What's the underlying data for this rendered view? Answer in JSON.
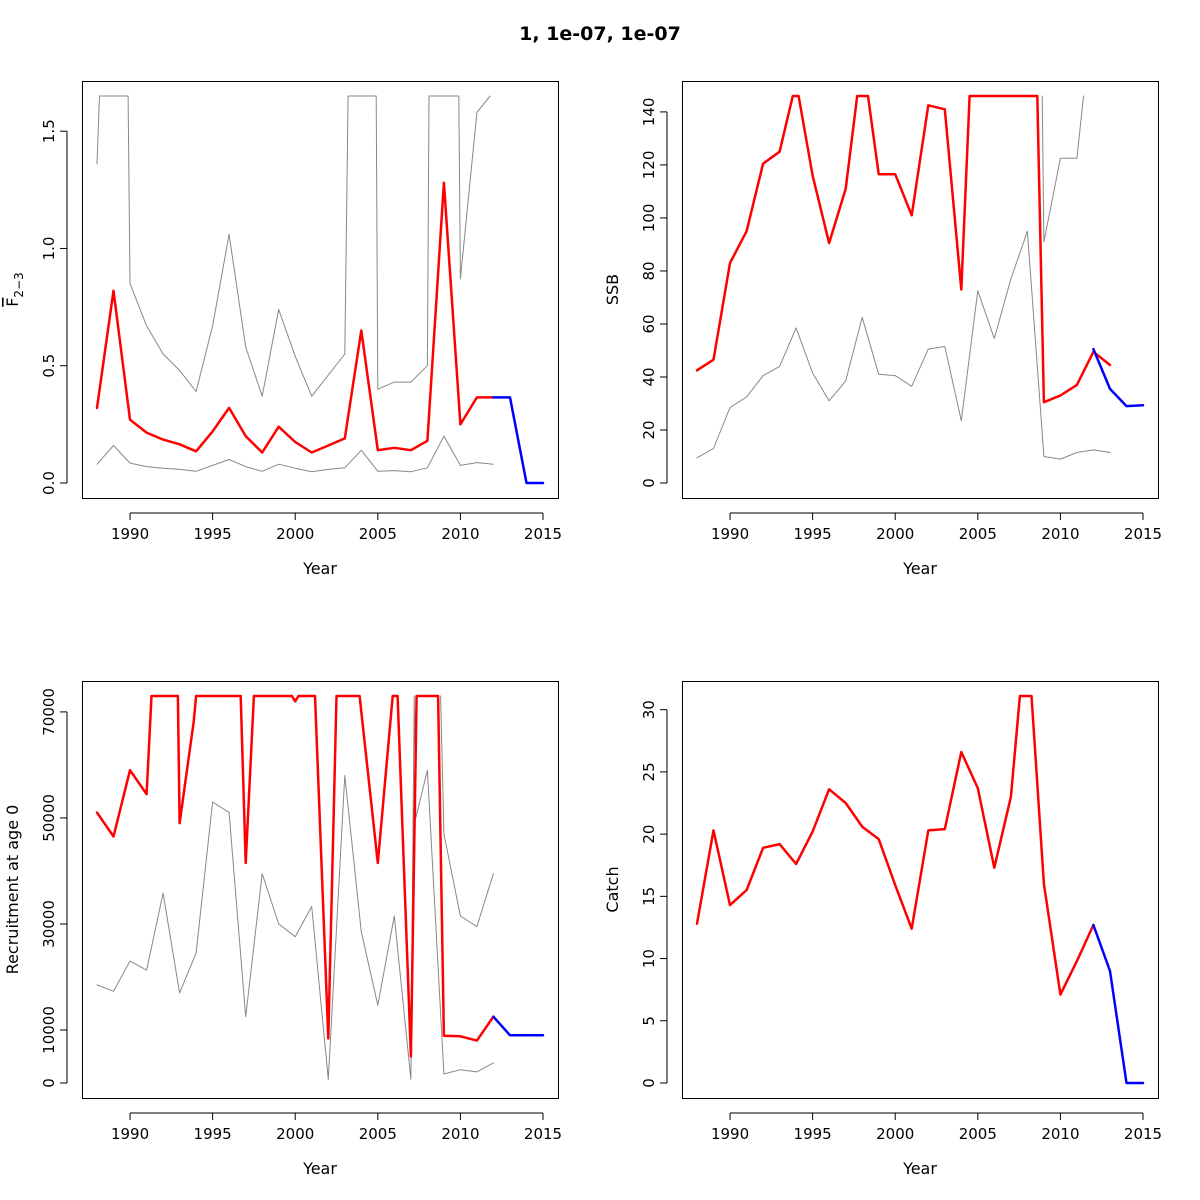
{
  "figure_title": "1, 1e-07, 1e-07",
  "chart_data": [
    {
      "type": "line",
      "xlabel": "Year",
      "ylabel_main": "F",
      "ylabel_sub": "2−3",
      "ylabel_overline": true,
      "xlim": [
        1988,
        2015
      ],
      "ylim": [
        0,
        1.65
      ],
      "xticks": [
        1990,
        1995,
        2000,
        2005,
        2010,
        2015
      ],
      "xtick_labels": [
        "1990",
        "1995",
        "2000",
        "2005",
        "2010",
        "2015"
      ],
      "yticks": [
        0,
        0.5,
        1.0,
        1.5
      ],
      "ytick_labels": [
        "0.0",
        "0.5",
        "1.0",
        "1.5"
      ],
      "series": [
        {
          "name": "lower",
          "color": "#888888",
          "width": 1,
          "x": [
            1988,
            1989,
            1990,
            1991,
            1992,
            1993,
            1994,
            1995,
            1996,
            1997,
            1998,
            1999,
            2000,
            2001,
            2002,
            2003,
            2004,
            2005,
            2006,
            2007,
            2008,
            2009,
            2010,
            2011,
            2012
          ],
          "values": [
            0.08,
            0.16,
            0.085,
            0.07,
            0.063,
            0.058,
            0.05,
            0.075,
            0.1,
            0.07,
            0.05,
            0.08,
            0.063,
            0.048,
            0.058,
            0.065,
            0.14,
            0.05,
            0.053,
            0.048,
            0.065,
            0.2,
            0.075,
            0.087,
            0.08
          ]
        },
        {
          "name": "upper",
          "color": "#888888",
          "width": 1,
          "x": [
            1988,
            1988.15,
            1989.88,
            1990,
            1991,
            1992,
            1993,
            1994,
            1995,
            1996,
            1997,
            1998,
            1999,
            2000,
            2001,
            2002,
            2003,
            2003.2,
            2004.9,
            2005,
            2006,
            2007,
            2008,
            2008.1,
            2009.9,
            2010,
            2011,
            2011.8
          ],
          "values": [
            1.36,
            1.65,
            1.65,
            0.85,
            0.67,
            0.55,
            0.48,
            0.39,
            0.67,
            1.06,
            0.58,
            0.37,
            0.74,
            0.54,
            0.37,
            0.46,
            0.55,
            1.65,
            1.65,
            0.4,
            0.43,
            0.43,
            0.5,
            1.65,
            1.65,
            0.87,
            1.58,
            1.65
          ]
        },
        {
          "name": "estimate",
          "color": "#ff0000",
          "width": 2.5,
          "x": [
            1988,
            1989,
            1990,
            1991,
            1992,
            1993,
            1994,
            1995,
            1996,
            1997,
            1998,
            1999,
            2000,
            2001,
            2002,
            2003,
            2004,
            2005,
            2006,
            2007,
            2008,
            2009,
            2010,
            2011,
            2012
          ],
          "values": [
            0.32,
            0.82,
            0.27,
            0.215,
            0.185,
            0.165,
            0.135,
            0.22,
            0.32,
            0.2,
            0.13,
            0.24,
            0.175,
            0.13,
            0.16,
            0.19,
            0.65,
            0.14,
            0.15,
            0.14,
            0.18,
            1.28,
            0.25,
            0.365,
            0.365
          ]
        },
        {
          "name": "forecast",
          "color": "#0000ff",
          "width": 2.5,
          "x": [
            2012,
            2013,
            2014,
            2015
          ],
          "values": [
            0.365,
            0.365,
            0.0,
            0.0
          ]
        }
      ]
    },
    {
      "type": "line",
      "xlabel": "Year",
      "ylabel_main": "SSB",
      "ylabel_sub": "",
      "ylabel_overline": false,
      "xlim": [
        1988,
        2015
      ],
      "ylim": [
        0,
        146
      ],
      "xticks": [
        1990,
        1995,
        2000,
        2005,
        2010,
        2015
      ],
      "xtick_labels": [
        "1990",
        "1995",
        "2000",
        "2005",
        "2010",
        "2015"
      ],
      "yticks": [
        0,
        20,
        40,
        60,
        80,
        100,
        120,
        140
      ],
      "ytick_labels": [
        "0",
        "20",
        "40",
        "60",
        "80",
        "100",
        "120",
        "140"
      ],
      "series": [
        {
          "name": "lower",
          "color": "#888888",
          "width": 1,
          "x": [
            1988,
            1989,
            1990,
            1991,
            1992,
            1993,
            1994,
            1995,
            1996,
            1997,
            1998,
            1999,
            2000,
            2001,
            2002,
            2003,
            2004,
            2005,
            2006,
            2007,
            2008,
            2009,
            2010,
            2011,
            2012,
            2013
          ],
          "values": [
            9.5,
            13,
            28.5,
            32.5,
            40.5,
            44,
            58.5,
            41.5,
            31,
            38.5,
            62.5,
            41,
            40.5,
            36.5,
            50.5,
            51.5,
            23.5,
            72.5,
            54.5,
            77,
            95,
            10,
            9,
            11.5,
            12.5,
            11.5
          ]
        },
        {
          "name": "upper",
          "color": "#888888",
          "width": 1,
          "x": [
            2008.9,
            2009,
            2010,
            2011,
            2011.4
          ],
          "values": [
            146,
            91,
            122.5,
            122.5,
            146
          ]
        },
        {
          "name": "estimate",
          "color": "#ff0000",
          "width": 2.5,
          "x": [
            1988,
            1989,
            1990,
            1991,
            1992,
            1993,
            1993.8,
            1994.15,
            1995,
            1996,
            1997,
            1997.7,
            1998.35,
            1999,
            2000,
            2001,
            2002,
            2003,
            2004,
            2004.5,
            2008.6,
            2009,
            2010,
            2011,
            2012,
            2013
          ],
          "values": [
            42.5,
            46.5,
            83,
            95,
            120.5,
            125,
            146,
            146,
            116,
            90.5,
            111,
            146,
            146,
            116.5,
            116.5,
            101,
            142.5,
            141,
            73,
            146,
            146,
            30.5,
            33,
            37,
            49.5,
            44.5
          ]
        },
        {
          "name": "forecast",
          "color": "#0000ff",
          "width": 2.5,
          "x": [
            2012,
            2013,
            2014,
            2015
          ],
          "values": [
            50.5,
            35.5,
            29,
            29.3
          ]
        }
      ]
    },
    {
      "type": "line",
      "xlabel": "Year",
      "ylabel_main": "Recruitment at age 0",
      "ylabel_sub": "",
      "ylabel_overline": false,
      "xlim": [
        1988,
        2015
      ],
      "ylim": [
        0,
        73000
      ],
      "xticks": [
        1990,
        1995,
        2000,
        2005,
        2010,
        2015
      ],
      "xtick_labels": [
        "1990",
        "1995",
        "2000",
        "2005",
        "2010",
        "2015"
      ],
      "yticks": [
        0,
        10000,
        30000,
        50000,
        70000
      ],
      "ytick_labels": [
        "0",
        "10000",
        "30000",
        "50000",
        "70000"
      ],
      "series": [
        {
          "name": "lower",
          "color": "#888888",
          "width": 1,
          "x": [
            1988,
            1989,
            1990,
            1991,
            1992,
            1993,
            1994,
            1995,
            1996,
            1997,
            1998,
            1999,
            2000,
            2001,
            2002,
            2003,
            2004,
            2005,
            2006,
            2007,
            2007.05,
            2007.2,
            2007.3,
            2008,
            2009,
            2010,
            2011,
            2012
          ],
          "values": [
            18500,
            17300,
            23000,
            21300,
            35800,
            17000,
            24500,
            53000,
            51000,
            12500,
            39500,
            30000,
            27600,
            33300,
            700,
            58000,
            28500,
            14700,
            31500,
            700,
            20000,
            73000,
            50000,
            59000,
            1700,
            2500,
            2100,
            3800
          ]
        },
        {
          "name": "upper",
          "color": "#888888",
          "width": 1,
          "x": [
            2008.8,
            2009,
            2010,
            2011,
            2012
          ],
          "values": [
            73000,
            47000,
            31500,
            29500,
            39500
          ]
        },
        {
          "name": "estimate",
          "color": "#ff0000",
          "width": 2.5,
          "x": [
            1988,
            1989,
            1990,
            1991,
            1991.3,
            1992.9,
            1993,
            1993.85,
            1994,
            1994.2,
            1996.7,
            1997,
            1997.5,
            1999.8,
            2000,
            2000.2,
            2001.2,
            2002,
            2002.5,
            2003.9,
            2005,
            2005.9,
            2006.2,
            2007,
            2007.35,
            2008.65,
            2009,
            2010,
            2011,
            2012
          ],
          "values": [
            51000,
            46500,
            59000,
            54500,
            73000,
            73000,
            49000,
            68000,
            73000,
            73000,
            73000,
            41500,
            73000,
            73000,
            72000,
            73000,
            73000,
            8400,
            73000,
            73000,
            41500,
            73000,
            73000,
            5000,
            73000,
            73000,
            8900,
            8800,
            8000,
            12500
          ]
        },
        {
          "name": "forecast",
          "color": "#0000ff",
          "width": 2.5,
          "x": [
            2012,
            2013,
            2014,
            2015
          ],
          "values": [
            12500,
            9000,
            9000,
            9000
          ]
        }
      ]
    },
    {
      "type": "line",
      "xlabel": "Year",
      "ylabel_main": "Catch",
      "ylabel_sub": "",
      "ylabel_overline": false,
      "xlim": [
        1988,
        2015
      ],
      "ylim": [
        0,
        31.1
      ],
      "xticks": [
        1990,
        1995,
        2000,
        2005,
        2010,
        2015
      ],
      "xtick_labels": [
        "1990",
        "1995",
        "2000",
        "2005",
        "2010",
        "2015"
      ],
      "yticks": [
        0,
        5,
        10,
        15,
        20,
        25,
        30
      ],
      "ytick_labels": [
        "0",
        "5",
        "10",
        "15",
        "20",
        "25",
        "30"
      ],
      "series": [
        {
          "name": "estimate",
          "color": "#ff0000",
          "width": 2.5,
          "x": [
            1988,
            1989,
            1990,
            1991,
            1992,
            1993,
            1994,
            1995,
            1996,
            1997,
            1998,
            1999,
            2000,
            2001,
            2002,
            2003,
            2004,
            2005,
            2006,
            2007,
            2007.55,
            2008.25,
            2009,
            2010,
            2011,
            2012
          ],
          "values": [
            12.8,
            20.3,
            14.3,
            15.5,
            18.9,
            19.2,
            17.6,
            20.2,
            23.6,
            22.5,
            20.6,
            19.6,
            15.9,
            12.4,
            20.3,
            20.4,
            26.6,
            23.7,
            17.3,
            23,
            31.1,
            31.1,
            16,
            7.1,
            9.8,
            12.7
          ]
        },
        {
          "name": "forecast",
          "color": "#0000ff",
          "width": 2.5,
          "x": [
            2012,
            2013,
            2014,
            2015
          ],
          "values": [
            12.7,
            9,
            0,
            0
          ]
        }
      ]
    }
  ]
}
